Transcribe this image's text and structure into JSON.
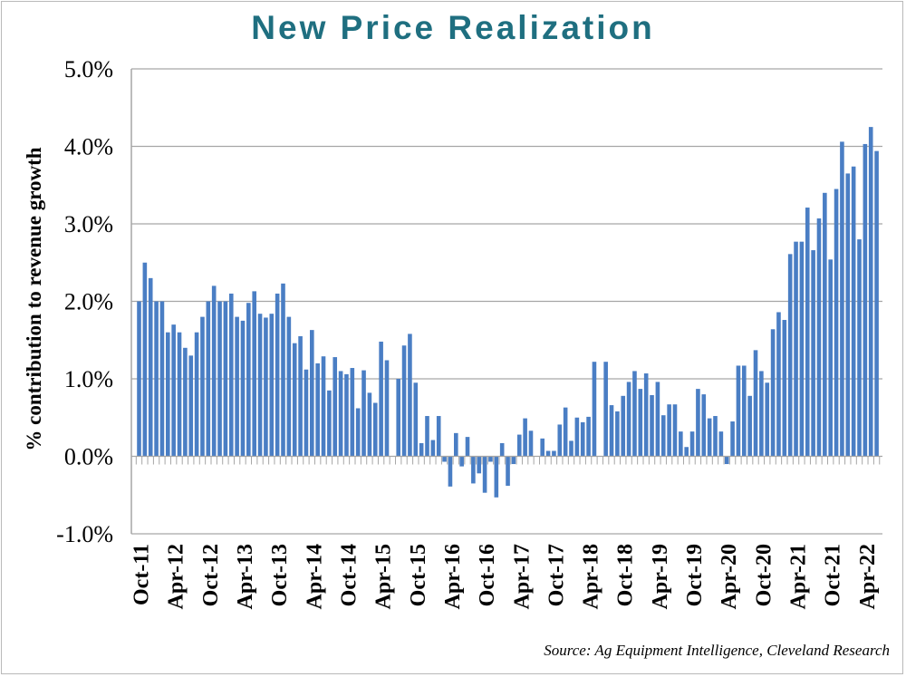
{
  "chart_data": {
    "type": "bar",
    "title": "New Price Realization",
    "xlabel": "",
    "ylabel": "% contribution to revenue growth",
    "ylim": [
      -1.0,
      5.0
    ],
    "yticks": [
      "-1.0%",
      "0.0%",
      "1.0%",
      "2.0%",
      "3.0%",
      "4.0%",
      "5.0%"
    ],
    "ytick_values": [
      -1.0,
      0.0,
      1.0,
      2.0,
      3.0,
      4.0,
      5.0
    ],
    "grid": true,
    "bar_color": "#4a7ec4",
    "x_labels": [
      "Oct-11",
      "Apr-12",
      "Oct-12",
      "Apr-13",
      "Oct-13",
      "Apr-14",
      "Oct-14",
      "Apr-15",
      "Oct-15",
      "Apr-16",
      "Oct-16",
      "Apr-17",
      "Oct-17",
      "Apr-18",
      "Oct-18",
      "Apr-19",
      "Oct-19",
      "Apr-20",
      "Oct-20",
      "Apr-21",
      "Oct-21",
      "Apr-22"
    ],
    "label_every_n_months": 6,
    "first_month": "Oct-11",
    "last_month": "Jun-22",
    "values": [
      2.0,
      2.5,
      2.3,
      2.0,
      2.0,
      1.6,
      1.7,
      1.6,
      1.4,
      1.3,
      1.6,
      1.8,
      2.0,
      2.2,
      2.0,
      2.0,
      2.1,
      1.8,
      1.75,
      1.98,
      2.13,
      1.84,
      1.79,
      1.84,
      2.1,
      2.23,
      1.8,
      1.46,
      1.55,
      1.12,
      1.63,
      1.2,
      1.29,
      0.85,
      1.28,
      1.1,
      1.06,
      1.14,
      0.62,
      1.11,
      0.82,
      0.69,
      1.48,
      1.24,
      0.0,
      1.0,
      1.43,
      1.58,
      0.95,
      0.17,
      0.52,
      0.21,
      0.52,
      -0.07,
      -0.39,
      0.3,
      -0.13,
      0.25,
      -0.35,
      -0.22,
      -0.47,
      -0.07,
      -0.53,
      0.17,
      -0.38,
      -0.1,
      0.28,
      0.49,
      0.33,
      0.0,
      0.23,
      0.07,
      0.07,
      0.41,
      0.63,
      0.2,
      0.5,
      0.44,
      0.51,
      1.22,
      0.0,
      1.22,
      0.66,
      0.58,
      0.78,
      0.96,
      1.1,
      0.87,
      1.07,
      0.79,
      0.96,
      0.53,
      0.67,
      0.67,
      0.32,
      0.12,
      0.32,
      0.87,
      0.8,
      0.49,
      0.52,
      0.32,
      -0.1,
      0.45,
      1.17,
      1.17,
      0.78,
      1.37,
      1.1,
      0.95,
      1.64,
      1.86,
      1.76,
      2.61,
      2.77,
      2.77,
      3.21,
      2.66,
      3.07,
      3.4,
      2.54,
      3.45,
      4.06,
      3.65,
      3.74,
      2.8,
      4.03,
      4.25,
      3.94
    ],
    "source": "Source: Ag Equipment Intelligence, Cleveland Research"
  }
}
